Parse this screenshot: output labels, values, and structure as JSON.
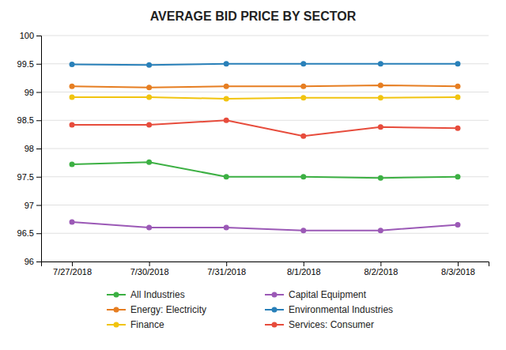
{
  "chart_data": {
    "type": "line",
    "title": "AVERAGE BID PRICE BY SECTOR",
    "categories": [
      "7/27/2018",
      "7/30/2018",
      "7/31/2018",
      "8/1/2018",
      "8/2/2018",
      "8/3/2018"
    ],
    "series": [
      {
        "name": "All Industries",
        "color": "#3cb043",
        "marker": "circle",
        "values": [
          97.72,
          97.76,
          97.5,
          97.5,
          97.48,
          97.5
        ]
      },
      {
        "name": "Capital Equipment",
        "color": "#9b59b6",
        "marker": "circle",
        "values": [
          96.7,
          96.6,
          96.6,
          96.55,
          96.55,
          96.65
        ]
      },
      {
        "name": "Energy: Electricity",
        "color": "#e67e22",
        "marker": "circle",
        "values": [
          99.1,
          99.08,
          99.1,
          99.1,
          99.12,
          99.1
        ]
      },
      {
        "name": "Environmental Industries",
        "color": "#2980b9",
        "marker": "circle",
        "values": [
          99.49,
          99.48,
          99.5,
          99.5,
          99.5,
          99.5
        ]
      },
      {
        "name": "Finance",
        "color": "#f1c40f",
        "marker": "circle",
        "values": [
          98.91,
          98.91,
          98.88,
          98.9,
          98.9,
          98.91
        ]
      },
      {
        "name": "Services: Consumer",
        "color": "#e74c3c",
        "marker": "circle",
        "values": [
          98.42,
          98.42,
          98.5,
          98.22,
          98.38,
          98.36
        ]
      }
    ],
    "ylim": [
      96,
      100
    ],
    "yticks": [
      96,
      96.5,
      97,
      97.5,
      98,
      98.5,
      99,
      99.5,
      100
    ],
    "grid": true,
    "legend": "bottom"
  }
}
